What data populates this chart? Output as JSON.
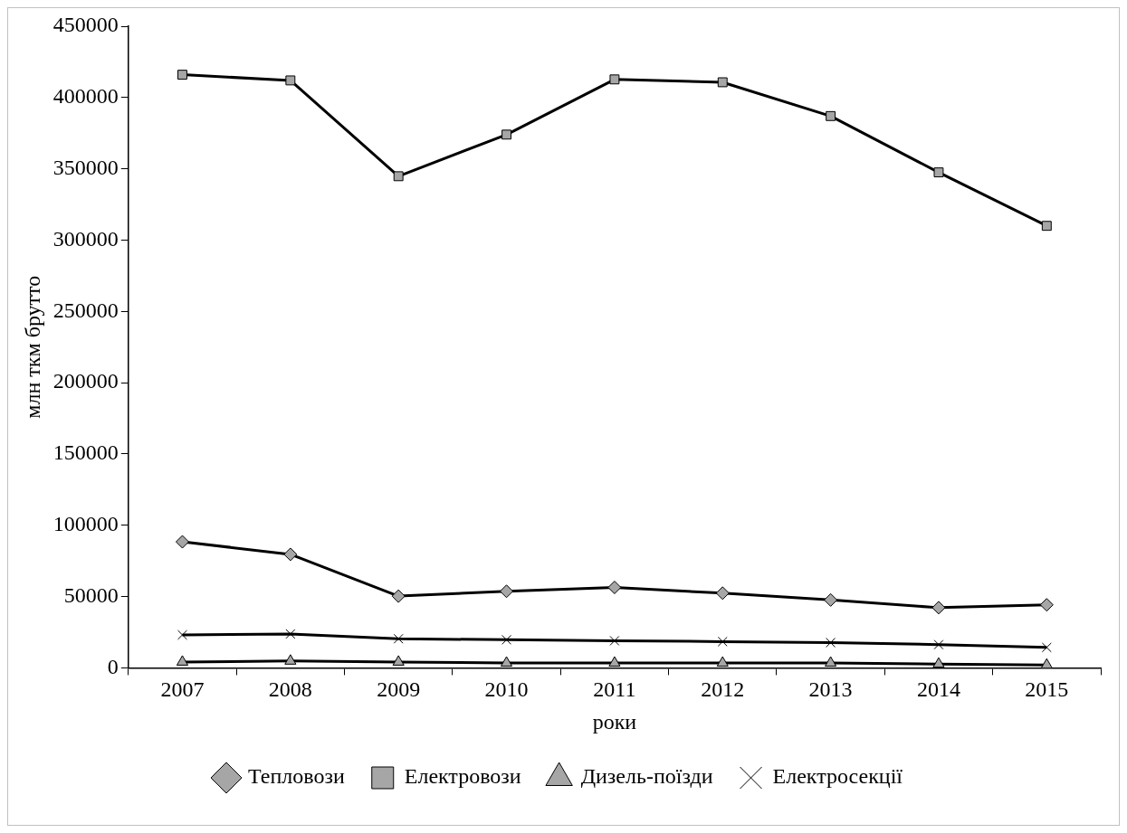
{
  "chart_data": {
    "type": "line",
    "xlabel": "роки",
    "ylabel": "млн ткм брутто",
    "categories": [
      "2007",
      "2008",
      "2009",
      "2010",
      "2011",
      "2012",
      "2013",
      "2014",
      "2015"
    ],
    "series": [
      {
        "name": "Тепловози",
        "color": "#000000",
        "marker": "diamond",
        "values": [
          88400,
          79600,
          50300,
          53700,
          56400,
          52400,
          47600,
          42200,
          44200
        ]
      },
      {
        "name": "Електровози",
        "color": "#000000",
        "marker": "square",
        "values": [
          416000,
          412000,
          344800,
          374000,
          412700,
          410700,
          387000,
          347500,
          310000
        ]
      },
      {
        "name": "Дизель-поїзди",
        "color": "#000000",
        "marker": "triangle",
        "values": [
          4100,
          4800,
          4100,
          3400,
          3400,
          3400,
          3400,
          2700,
          2000
        ]
      },
      {
        "name": "Електросекції",
        "color": "#000000",
        "marker": "cross",
        "values": [
          23100,
          23800,
          20400,
          19700,
          19000,
          18400,
          17700,
          16300,
          14300
        ]
      }
    ],
    "ylim": [
      0,
      450000
    ],
    "yticks": [
      0,
      50000,
      100000,
      150000,
      200000,
      250000,
      300000,
      350000,
      400000,
      450000
    ],
    "grid": false,
    "legend": "bottom",
    "line_style": "solid"
  }
}
